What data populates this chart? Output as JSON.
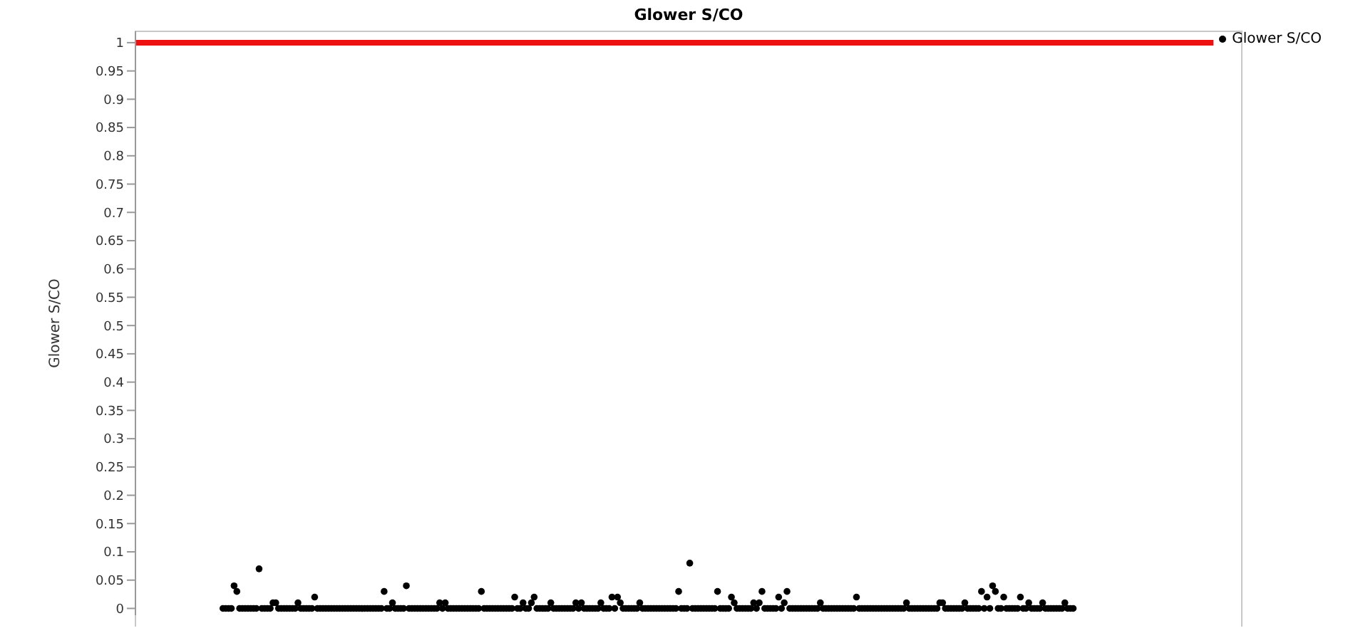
{
  "chart_data": {
    "type": "scatter",
    "title": "Glower S/CO",
    "ylabel": "Glower S/CO",
    "categories": [
      null,
      null,
      null,
      null,
      null,
      null,
      null,
      null,
      null,
      null,
      null,
      null,
      null,
      null,
      null,
      null,
      null,
      null,
      null,
      null,
      null,
      null,
      null,
      null,
      null,
      null,
      null,
      null,
      null,
      null,
      null,
      null,
      null,
      null,
      null,
      null,
      null,
      null,
      null,
      null,
      null,
      null,
      null,
      null,
      null,
      null,
      null,
      null,
      null,
      null,
      null,
      null,
      null,
      null,
      null,
      null,
      null,
      null,
      null,
      null,
      null,
      null,
      null,
      null,
      null,
      null,
      null,
      null,
      null,
      null,
      null,
      null,
      null,
      null,
      null,
      null,
      null,
      null,
      null,
      null,
      null,
      null,
      null,
      null,
      null,
      null,
      null,
      null,
      null,
      null,
      null,
      null,
      null,
      null,
      null,
      null,
      null,
      null,
      null,
      null,
      null,
      null,
      null,
      null,
      null,
      null,
      null,
      null,
      null,
      null,
      null,
      null,
      null,
      null,
      null,
      null,
      null,
      null,
      null,
      null,
      null,
      null,
      null,
      null,
      null,
      null,
      null,
      null,
      null,
      null,
      null,
      null,
      null,
      null,
      null,
      null,
      null,
      null,
      null,
      null,
      null,
      null,
      null,
      null,
      null,
      null,
      null,
      null,
      null,
      null,
      null,
      null,
      null,
      null,
      null,
      null,
      null,
      null,
      null,
      null,
      null,
      null,
      null,
      null,
      null,
      null,
      null,
      null,
      null,
      null,
      null,
      null,
      null,
      null,
      null,
      null,
      null,
      null,
      null,
      null,
      null,
      null,
      null,
      null,
      null,
      null,
      null,
      null,
      null,
      null,
      null,
      null,
      null,
      null,
      null,
      null,
      null,
      null,
      null,
      null,
      null,
      null,
      null,
      null,
      null,
      null,
      null,
      null,
      null,
      null,
      null,
      null,
      null,
      null,
      null,
      null,
      null,
      null,
      null,
      null,
      null,
      null,
      null,
      null,
      null,
      null,
      null,
      null,
      null,
      null,
      null,
      null,
      null,
      null,
      null,
      null,
      null,
      null,
      null,
      null,
      null,
      null,
      null,
      null,
      null,
      null,
      null,
      null,
      null,
      null,
      null,
      null,
      null,
      null,
      null,
      null,
      null,
      null,
      null,
      null,
      null,
      null,
      null,
      null,
      null,
      null,
      null,
      null,
      null,
      null,
      null,
      null,
      null,
      null,
      null,
      null,
      null,
      null,
      null,
      null,
      null,
      null,
      null,
      null,
      null,
      null,
      null,
      null,
      null,
      null,
      null,
      null,
      null,
      null,
      null,
      null,
      null,
      null,
      null,
      null,
      null,
      null,
      null,
      null,
      null,
      null,
      null,
      null,
      null,
      null,
      null,
      null,
      null,
      null,
      null,
      null,
      null,
      null,
      null,
      null,
      null,
      null,
      null,
      null,
      null,
      null,
      null,
      null,
      null,
      null,
      null,
      null,
      null,
      null,
      null,
      null,
      null,
      null,
      null,
      null,
      null,
      null,
      null,
      null,
      null,
      null,
      null,
      null,
      null,
      null,
      null,
      null,
      null,
      null,
      null,
      null,
      null,
      null,
      null,
      null,
      null,
      null,
      null,
      null,
      null,
      null,
      null,
      null,
      null,
      null,
      null,
      null,
      null,
      null,
      null,
      null,
      null,
      null,
      null,
      null,
      null,
      null,
      null,
      null,
      null,
      null,
      null,
      null
    ],
    "series": [
      {
        "name": "Glower S/CO",
        "color": "#000000",
        "values": [
          null,
          null,
          null,
          null,
          null,
          null,
          null,
          null,
          null,
          null,
          null,
          null,
          null,
          null,
          null,
          null,
          null,
          null,
          null,
          null,
          null,
          null,
          null,
          null,
          null,
          null,
          null,
          null,
          null,
          null,
          null,
          0,
          0,
          0,
          0,
          0.04,
          0.03,
          0,
          0,
          0,
          0,
          0,
          0,
          0,
          0.07,
          0,
          0,
          0,
          0,
          0.01,
          0.01,
          0,
          0,
          0,
          0,
          0,
          0,
          0,
          0.01,
          0,
          0,
          0,
          0,
          0,
          0.02,
          0,
          0,
          0,
          0,
          0,
          0,
          0,
          0,
          0,
          0,
          0,
          0,
          0,
          0,
          0,
          0,
          0,
          0,
          0,
          0,
          0,
          0,
          0,
          0,
          0.03,
          0,
          0,
          0.01,
          0,
          0,
          0,
          0,
          0.04,
          0,
          0,
          0,
          0,
          0,
          0,
          0,
          0,
          0,
          0,
          0,
          0.01,
          0,
          0.01,
          0,
          0,
          0,
          0,
          0,
          0,
          0,
          0,
          0,
          0,
          0,
          0,
          0.03,
          0,
          0,
          0,
          0,
          0,
          0,
          0,
          0,
          0,
          0,
          0,
          0.02,
          0,
          0,
          0.01,
          0,
          0,
          0.01,
          0.02,
          0,
          0,
          0,
          0,
          0,
          0.01,
          0,
          0,
          0,
          0,
          0,
          0,
          0,
          0,
          0.01,
          0,
          0.01,
          0,
          0,
          0,
          0,
          0,
          0,
          0.01,
          0,
          0,
          0,
          0.02,
          0,
          0.02,
          0.01,
          0,
          0,
          0,
          0,
          0,
          0,
          0.01,
          0,
          0,
          0,
          0,
          0,
          0,
          0,
          0,
          0,
          0,
          0,
          0,
          0,
          0.03,
          0,
          0,
          0,
          0.08,
          0,
          0,
          0,
          0,
          0,
          0,
          0,
          0,
          0,
          0.03,
          0,
          0,
          0,
          0,
          0.02,
          0.01,
          0,
          0,
          0,
          0,
          0,
          0,
          0.01,
          0,
          0.01,
          0.03,
          0,
          0,
          0,
          0,
          0,
          0.02,
          0,
          0.01,
          0.03,
          0,
          0,
          0,
          0,
          0,
          0,
          0,
          0,
          0,
          0,
          0,
          0.01,
          0,
          0,
          0,
          0,
          0,
          0,
          0,
          0,
          0,
          0,
          0,
          0,
          0.02,
          0,
          0,
          0,
          0,
          0,
          0,
          0,
          0,
          0,
          0,
          0,
          0,
          0,
          0,
          0,
          0,
          0,
          0.01,
          0,
          0,
          0,
          0,
          0,
          0,
          0,
          0,
          0,
          0,
          0,
          0.01,
          0.01,
          0,
          0,
          0,
          0,
          0,
          0,
          0,
          0.01,
          0,
          0,
          0,
          0,
          0,
          0.03,
          0,
          0.02,
          0,
          0.04,
          0.03,
          0,
          0,
          0.02,
          0,
          0,
          0,
          0,
          0,
          0.02,
          0,
          0,
          0.01,
          0,
          0,
          0,
          0,
          0.01,
          0,
          0,
          0,
          0,
          0,
          0,
          0,
          0.01,
          0,
          0,
          0,
          null,
          null,
          null,
          null,
          null,
          null,
          null,
          null,
          null,
          null,
          null,
          null,
          null,
          null,
          null,
          null,
          null,
          null,
          null,
          null,
          null,
          null,
          null,
          null,
          null,
          null,
          null,
          null,
          null,
          null,
          null,
          null,
          null,
          null,
          null,
          null,
          null,
          null,
          null,
          null,
          null,
          null,
          null,
          null,
          null,
          null,
          null,
          null,
          null,
          null
        ]
      }
    ],
    "ylim": [
      -0.012,
      1.02
    ],
    "yticks": [
      0,
      0.05,
      0.1,
      0.15,
      0.2,
      0.25,
      0.3,
      0.35,
      0.4,
      0.45,
      0.5,
      0.55,
      0.6,
      0.65,
      0.7,
      0.75,
      0.8,
      0.85,
      0.9,
      0.95,
      1
    ],
    "tick_labels": "y",
    "grid": false,
    "legend": "top right",
    "marker": "circle",
    "ref_lines": [
      {
        "axis": "y",
        "value": 1,
        "color": "#ee1111"
      }
    ]
  }
}
